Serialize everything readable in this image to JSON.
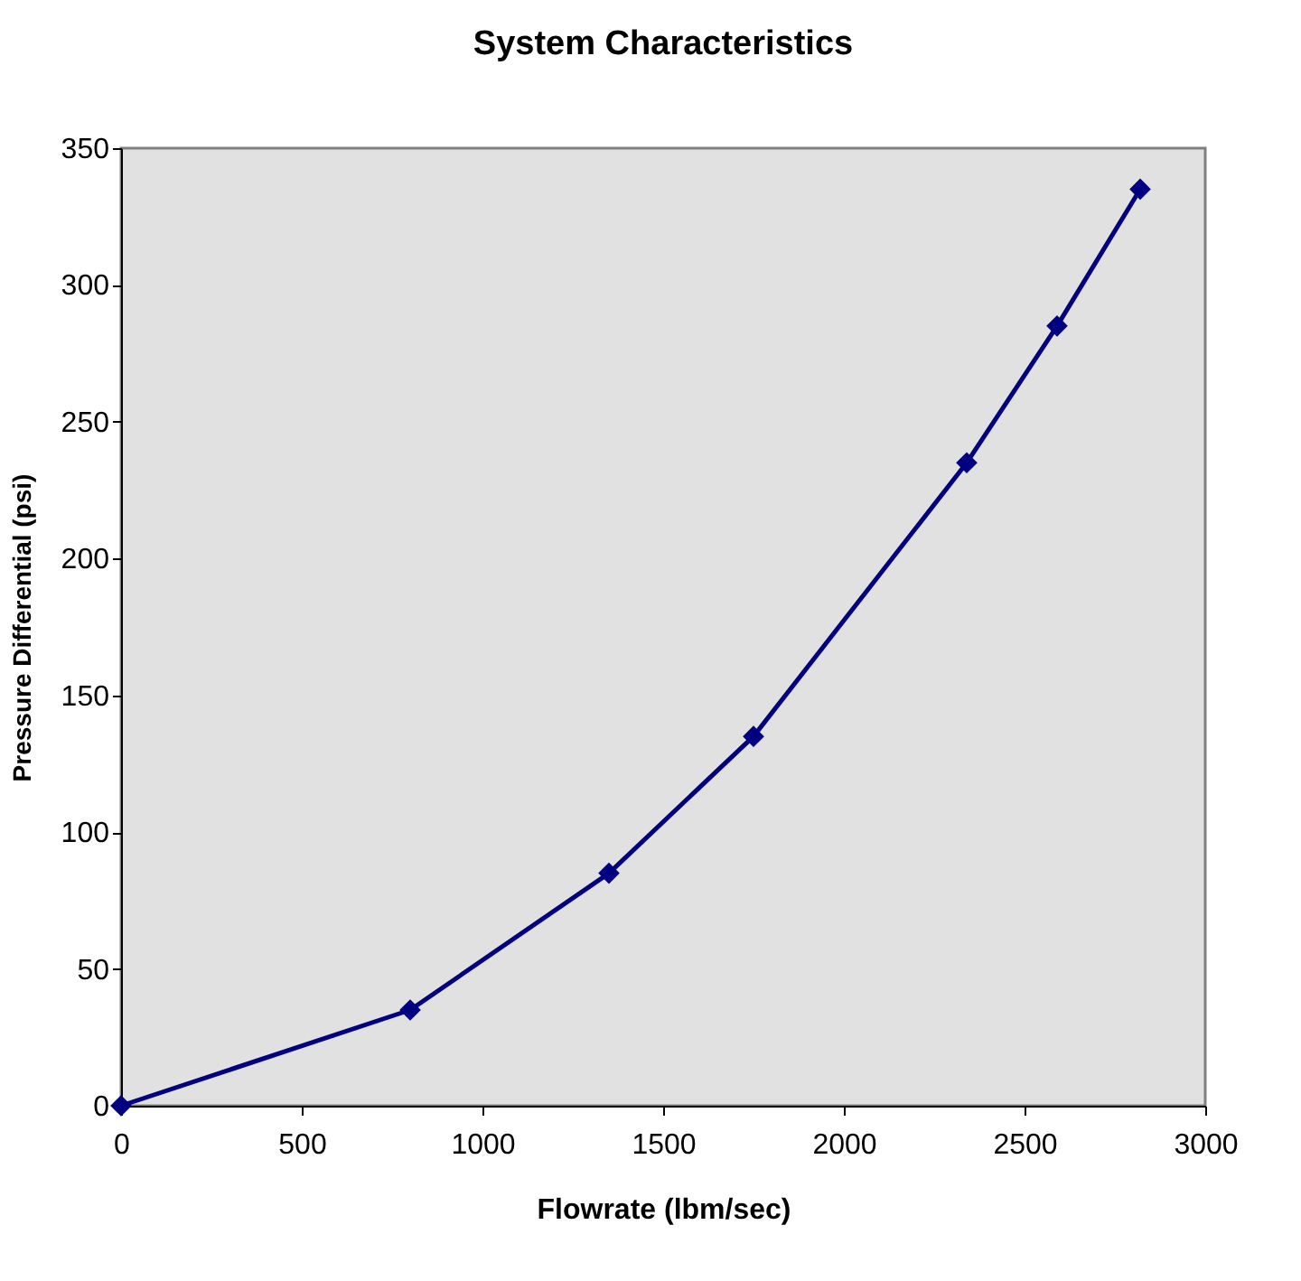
{
  "chart_data": {
    "type": "line",
    "title": "System Characteristics",
    "xlabel": "Flowrate (lbm/sec)",
    "ylabel": "Pressure Differential (psi)",
    "x": [
      0,
      800,
      1350,
      1750,
      2340,
      2590,
      2820
    ],
    "series": [
      {
        "color": "#000080",
        "values": [
          0,
          35,
          85,
          135,
          235,
          285,
          335
        ]
      }
    ],
    "xlim": [
      0,
      3000
    ],
    "xticks": [
      0,
      500,
      1000,
      1500,
      2000,
      2500,
      3000
    ],
    "ylim": [
      0,
      350
    ],
    "yticks": [
      0,
      50,
      100,
      150,
      200,
      250,
      300,
      350
    ],
    "grid": false,
    "marker": "diamond",
    "line_style": "solid"
  }
}
